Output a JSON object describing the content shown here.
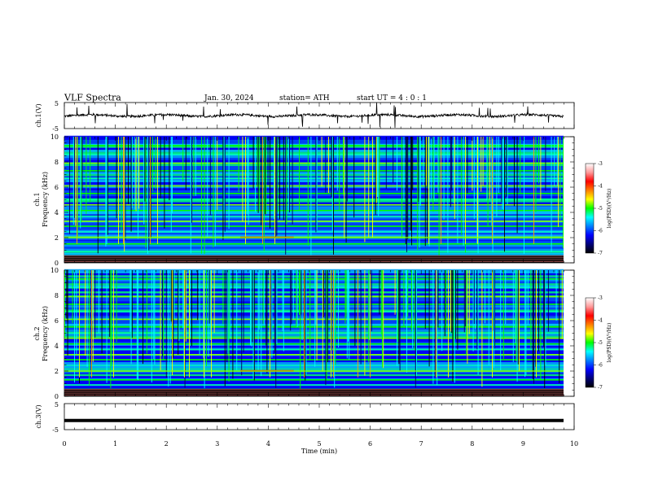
{
  "header": {
    "title": "VLF  Spectra",
    "date": "Jan.  30,  2024",
    "station": "station= ATH",
    "start": "start  UT  =   4  : 0   : 1"
  },
  "chart_data": [
    {
      "type": "line",
      "ylabel": "ch.1(V)",
      "ylim": [
        -5,
        5
      ],
      "yticks": [
        "5",
        "-5"
      ],
      "xlim": [
        0,
        10
      ],
      "baseline": 0.0
    },
    {
      "type": "heatmap",
      "ylabel_line1": "ch.1",
      "ylabel_line2": "Frequency  (kHz)",
      "ylim": [
        0,
        10
      ],
      "yticks": [
        "0",
        "2",
        "4",
        "6",
        "8",
        "10"
      ],
      "xlim": [
        0,
        10
      ],
      "colorbar": {
        "label": "log(PSD)(V²/Hz)",
        "range": [
          -7,
          -3
        ],
        "ticks": [
          "-3",
          "-4",
          "-5",
          "-6",
          "-7"
        ]
      },
      "bands_khz": [
        0.3,
        0.5,
        0.9,
        1.5,
        2.05,
        2.45,
        2.9,
        3.3,
        3.7,
        4.15,
        4.6,
        5.0,
        5.5,
        6.1,
        6.7,
        7.3,
        7.9,
        8.6,
        9.3
      ]
    },
    {
      "type": "heatmap",
      "ylabel_line1": "ch.2",
      "ylabel_line2": "Frequency  (kHz)",
      "ylim": [
        0,
        10
      ],
      "yticks": [
        "0",
        "2",
        "4",
        "6",
        "8",
        "10"
      ],
      "xlim": [
        0,
        10
      ],
      "colorbar": {
        "label": "log(PSD)(V²/Hz)",
        "range": [
          -7,
          -3
        ],
        "ticks": [
          "-3",
          "-4",
          "-5",
          "-6",
          "-7"
        ]
      },
      "bands_khz": [
        0.3,
        0.5,
        0.9,
        1.3,
        2.0,
        2.45,
        2.9,
        3.3,
        3.7,
        4.15,
        4.6,
        5.0,
        5.5,
        6.1,
        6.7,
        7.3,
        7.9,
        8.6,
        9.3
      ]
    },
    {
      "type": "line",
      "ylabel": "ch.3(V)",
      "ylim": [
        -5,
        5
      ],
      "yticks": [
        "5",
        "-5"
      ],
      "xlim": [
        0,
        10
      ],
      "baseline": -1.5,
      "xlabel": "Time  (min)",
      "xticks": [
        "0",
        "1",
        "2",
        "3",
        "4",
        "5",
        "6",
        "7",
        "8",
        "9",
        "10"
      ]
    }
  ],
  "colors": {
    "scale": [
      "#000000",
      "#00007a",
      "#0000ff",
      "#0080ff",
      "#00ffff",
      "#00ff00",
      "#ffff00",
      "#ff8000",
      "#ff0000",
      "#ff9999",
      "#ffffff"
    ]
  }
}
